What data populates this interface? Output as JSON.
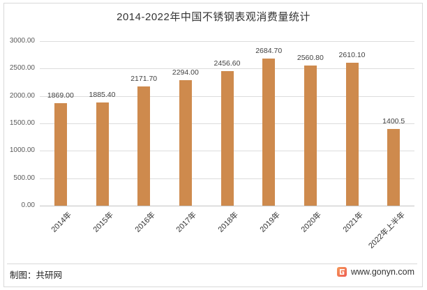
{
  "title": "2014-2022年中国不锈钢表观消费量统计",
  "chart_data": {
    "type": "bar",
    "title": "2014-2022年中国不锈钢表观消费量统计",
    "categories": [
      "2014年",
      "2015年",
      "2016年",
      "2017年",
      "2018年",
      "2019年",
      "2020年",
      "2021年",
      "2022年上半年"
    ],
    "values": [
      1869.0,
      1885.4,
      2171.7,
      2294.0,
      2456.6,
      2684.7,
      2560.8,
      2610.1,
      1400.5
    ],
    "value_labels": [
      "1869.00",
      "1885.40",
      "2171.70",
      "2294.00",
      "2456.60",
      "2684.70",
      "2560.80",
      "2610.10",
      "1400.5"
    ],
    "xlabel": "",
    "ylabel": "",
    "ylim": [
      0,
      3000
    ],
    "ytick_interval": 500,
    "ytick_labels_top_to_bottom": [
      "3000.00",
      "2500.00",
      "2000.00",
      "1500.00",
      "1000.00",
      "500.00",
      "0.00"
    ],
    "grid": true,
    "legend": "none",
    "bar_color": "#ce8a4d"
  },
  "footer": {
    "credit": "制图：共研网",
    "website": "www.gonyn.com",
    "logo": "gonyn-logo"
  },
  "colors": {
    "bar": "#ce8a4d",
    "gridline": "#dcdcdc",
    "axis_label": "#595959",
    "value_label": "#404040",
    "border": "#d9d9d9",
    "logo_gradient_start": "#f59a57",
    "logo_gradient_end": "#ee5a52"
  }
}
